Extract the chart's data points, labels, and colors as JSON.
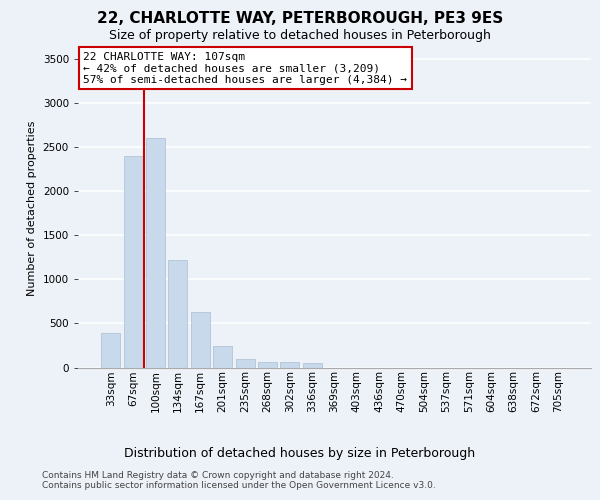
{
  "title1": "22, CHARLOTTE WAY, PETERBOROUGH, PE3 9ES",
  "title2": "Size of property relative to detached houses in Peterborough",
  "xlabel": "Distribution of detached houses by size in Peterborough",
  "ylabel": "Number of detached properties",
  "categories": [
    "33sqm",
    "67sqm",
    "100sqm",
    "134sqm",
    "167sqm",
    "201sqm",
    "235sqm",
    "268sqm",
    "302sqm",
    "336sqm",
    "369sqm",
    "403sqm",
    "436sqm",
    "470sqm",
    "504sqm",
    "537sqm",
    "571sqm",
    "604sqm",
    "638sqm",
    "672sqm",
    "705sqm"
  ],
  "values": [
    390,
    2400,
    2600,
    1220,
    630,
    240,
    100,
    65,
    60,
    55,
    0,
    0,
    0,
    0,
    0,
    0,
    0,
    0,
    0,
    0,
    0
  ],
  "bar_color": "#c9d9ec",
  "bar_edge_color": "#a8bfd4",
  "vline_index": 2,
  "vline_color": "#cc0000",
  "annotation_text": "22 CHARLOTTE WAY: 107sqm\n← 42% of detached houses are smaller (3,209)\n57% of semi-detached houses are larger (4,384) →",
  "annotation_box_color": "white",
  "annotation_box_edge": "#cc0000",
  "ylim_max": 3600,
  "yticks": [
    0,
    500,
    1000,
    1500,
    2000,
    2500,
    3000,
    3500
  ],
  "footer": "Contains HM Land Registry data © Crown copyright and database right 2024.\nContains public sector information licensed under the Open Government Licence v3.0.",
  "bg_color": "#edf1f8",
  "grid_color": "white",
  "title1_fontsize": 11,
  "title2_fontsize": 9,
  "xlabel_fontsize": 9,
  "ylabel_fontsize": 8,
  "tick_fontsize": 7.5,
  "annotation_fontsize": 8,
  "footer_fontsize": 6.5
}
